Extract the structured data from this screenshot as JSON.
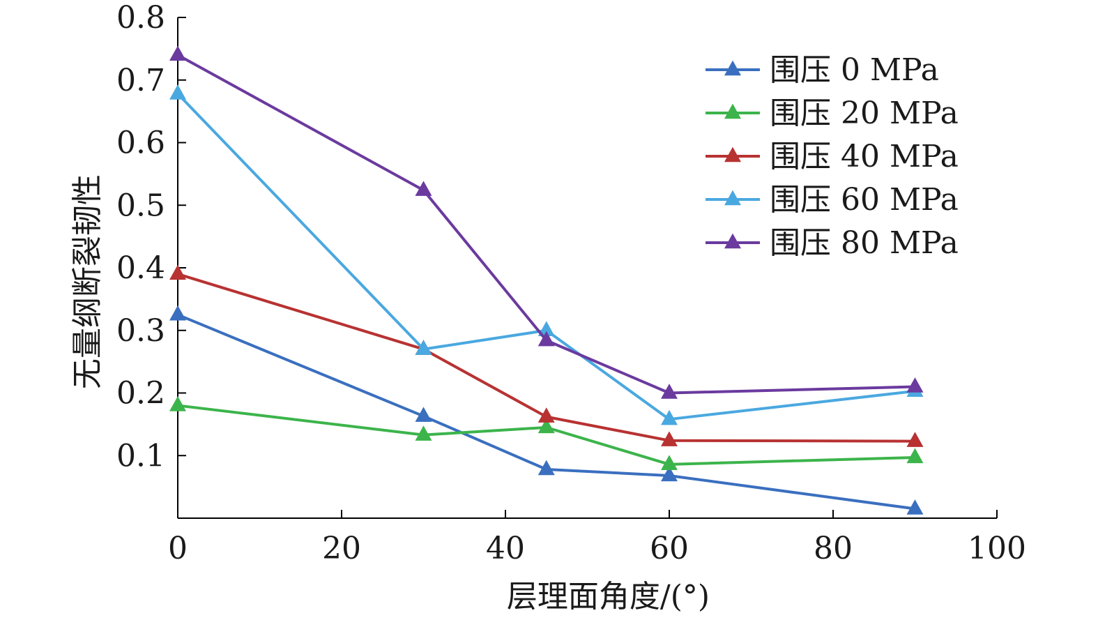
{
  "chart_data": {
    "type": "line",
    "title": "",
    "xlabel": "层理面角度/(°)",
    "ylabel": "无量纲断裂韧性",
    "xlim": [
      0,
      100
    ],
    "ylim": [
      0,
      0.8
    ],
    "xticks": [
      0,
      20,
      40,
      60,
      80,
      100
    ],
    "yticks": [
      0.1,
      0.2,
      0.3,
      0.4,
      0.5,
      0.6,
      0.7,
      0.8
    ],
    "x": [
      0,
      30,
      45,
      60,
      90
    ],
    "legend_position": "top-right",
    "grid": false,
    "series": [
      {
        "name": "围压 0 MPa",
        "color": "#3a6fbf",
        "values": [
          0.325,
          0.163,
          0.078,
          0.068,
          0.015
        ]
      },
      {
        "name": "围压 20 MPa",
        "color": "#3cb44b",
        "values": [
          0.18,
          0.133,
          0.145,
          0.086,
          0.097
        ]
      },
      {
        "name": "围压 40 MPa",
        "color": "#b83232",
        "values": [
          0.39,
          0.27,
          0.162,
          0.124,
          0.123
        ]
      },
      {
        "name": "围压 60 MPa",
        "color": "#4aa8e0",
        "values": [
          0.678,
          0.27,
          0.3,
          0.158,
          0.203
        ]
      },
      {
        "name": "围压 80 MPa",
        "color": "#6b3a9e",
        "values": [
          0.74,
          0.524,
          0.284,
          0.2,
          0.21
        ]
      }
    ]
  }
}
